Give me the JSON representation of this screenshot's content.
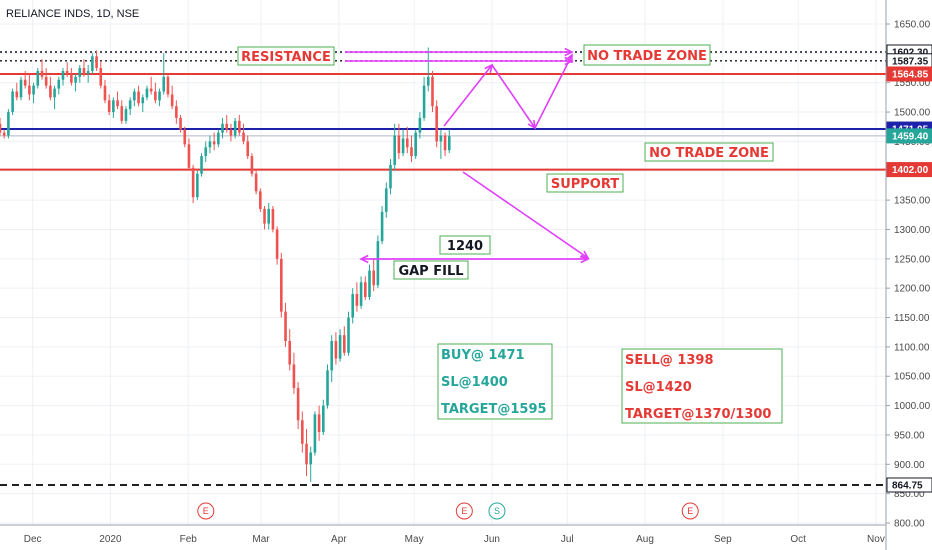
{
  "chart_data": {
    "type": "candlestick",
    "title": "RELIANCE INDS, 1D, NSE",
    "ylim": [
      790,
      1690
    ],
    "y_ticks": [
      800,
      850,
      900,
      950,
      1000,
      1050,
      1100,
      1150,
      1200,
      1250,
      1300,
      1350,
      1400,
      1450,
      1500,
      1550,
      1600,
      1650
    ],
    "y_tick_labels": [
      "800.00",
      "850.00",
      "900.00",
      "950.00",
      "1000.00",
      "1050.00",
      "1100.00",
      "1150.00",
      "1200.00",
      "1250.00",
      "1300.00",
      "1350.00",
      "1400.00",
      "1450.00",
      "1500.00",
      "1550.00",
      "1600.00",
      "1650.00"
    ],
    "x_domain_days": [
      0,
      353
    ],
    "x_ticks": [
      {
        "day": 13,
        "label": "Dec"
      },
      {
        "day": 44,
        "label": "2020"
      },
      {
        "day": 75,
        "label": "Feb"
      },
      {
        "day": 104,
        "label": "Mar"
      },
      {
        "day": 135,
        "label": "Apr"
      },
      {
        "day": 165,
        "label": "May"
      },
      {
        "day": 196,
        "label": "Jun"
      },
      {
        "day": 226,
        "label": "Jul"
      },
      {
        "day": 257,
        "label": "Aug"
      },
      {
        "day": 288,
        "label": "Sep"
      },
      {
        "day": 318,
        "label": "Oct"
      },
      {
        "day": 349,
        "label": "Nov"
      }
    ],
    "up_color": "#26a69a",
    "down_color": "#ef5350",
    "ohlc_points": [
      [
        1480,
        1490,
        1460,
        1465
      ],
      [
        1465,
        1470,
        1455,
        1460
      ],
      [
        1460,
        1505,
        1455,
        1500
      ],
      [
        1500,
        1540,
        1495,
        1535
      ],
      [
        1535,
        1550,
        1520,
        1525
      ],
      [
        1525,
        1560,
        1520,
        1555
      ],
      [
        1555,
        1570,
        1540,
        1545
      ],
      [
        1545,
        1565,
        1520,
        1530
      ],
      [
        1530,
        1550,
        1515,
        1545
      ],
      [
        1545,
        1575,
        1540,
        1570
      ],
      [
        1570,
        1590,
        1555,
        1560
      ],
      [
        1560,
        1575,
        1540,
        1545
      ],
      [
        1545,
        1560,
        1520,
        1525
      ],
      [
        1525,
        1545,
        1505,
        1540
      ],
      [
        1540,
        1560,
        1530,
        1555
      ],
      [
        1555,
        1575,
        1545,
        1570
      ],
      [
        1570,
        1585,
        1560,
        1565
      ],
      [
        1565,
        1575,
        1545,
        1550
      ],
      [
        1550,
        1565,
        1535,
        1560
      ],
      [
        1560,
        1580,
        1550,
        1575
      ],
      [
        1575,
        1590,
        1560,
        1565
      ],
      [
        1565,
        1580,
        1550,
        1570
      ],
      [
        1570,
        1600,
        1565,
        1595
      ],
      [
        1595,
        1605,
        1570,
        1575
      ],
      [
        1575,
        1585,
        1540,
        1545
      ],
      [
        1545,
        1555,
        1515,
        1520
      ],
      [
        1520,
        1530,
        1495,
        1500
      ],
      [
        1500,
        1525,
        1490,
        1520
      ],
      [
        1520,
        1535,
        1505,
        1510
      ],
      [
        1510,
        1520,
        1480,
        1485
      ],
      [
        1485,
        1510,
        1480,
        1505
      ],
      [
        1505,
        1525,
        1495,
        1520
      ],
      [
        1520,
        1540,
        1510,
        1535
      ],
      [
        1535,
        1545,
        1510,
        1515
      ],
      [
        1515,
        1530,
        1500,
        1525
      ],
      [
        1525,
        1545,
        1520,
        1540
      ],
      [
        1540,
        1560,
        1530,
        1535
      ],
      [
        1535,
        1550,
        1515,
        1520
      ],
      [
        1520,
        1540,
        1510,
        1535
      ],
      [
        1535,
        1600,
        1530,
        1560
      ],
      [
        1560,
        1565,
        1525,
        1530
      ],
      [
        1530,
        1545,
        1505,
        1510
      ],
      [
        1510,
        1520,
        1480,
        1490
      ],
      [
        1490,
        1495,
        1465,
        1470
      ],
      [
        1470,
        1475,
        1440,
        1445
      ],
      [
        1445,
        1455,
        1400,
        1405
      ],
      [
        1405,
        1410,
        1345,
        1355
      ],
      [
        1355,
        1400,
        1350,
        1395
      ],
      [
        1395,
        1430,
        1390,
        1425
      ],
      [
        1425,
        1450,
        1415,
        1440
      ],
      [
        1440,
        1460,
        1430,
        1450
      ],
      [
        1450,
        1465,
        1435,
        1445
      ],
      [
        1445,
        1470,
        1440,
        1465
      ],
      [
        1465,
        1490,
        1455,
        1480
      ],
      [
        1480,
        1495,
        1465,
        1470
      ],
      [
        1470,
        1480,
        1450,
        1460
      ],
      [
        1460,
        1490,
        1455,
        1485
      ],
      [
        1485,
        1495,
        1460,
        1465
      ],
      [
        1465,
        1480,
        1445,
        1450
      ],
      [
        1450,
        1460,
        1420,
        1425
      ],
      [
        1425,
        1430,
        1390,
        1395
      ],
      [
        1395,
        1400,
        1360,
        1365
      ],
      [
        1365,
        1370,
        1330,
        1335
      ],
      [
        1335,
        1340,
        1300,
        1310
      ],
      [
        1310,
        1345,
        1300,
        1335
      ],
      [
        1335,
        1340,
        1295,
        1300
      ],
      [
        1300,
        1305,
        1240,
        1250
      ],
      [
        1250,
        1260,
        1150,
        1160
      ],
      [
        1160,
        1175,
        1100,
        1110
      ],
      [
        1110,
        1130,
        1060,
        1070
      ],
      [
        1070,
        1090,
        1020,
        1030
      ],
      [
        1030,
        1040,
        960,
        975
      ],
      [
        975,
        990,
        920,
        935
      ],
      [
        935,
        960,
        880,
        900
      ],
      [
        900,
        930,
        870,
        920
      ],
      [
        920,
        990,
        915,
        985
      ],
      [
        985,
        1000,
        940,
        955
      ],
      [
        955,
        1010,
        950,
        1000
      ],
      [
        1000,
        1070,
        995,
        1060
      ],
      [
        1060,
        1120,
        1040,
        1110
      ],
      [
        1110,
        1125,
        1070,
        1080
      ],
      [
        1080,
        1130,
        1075,
        1120
      ],
      [
        1120,
        1135,
        1085,
        1090
      ],
      [
        1090,
        1160,
        1085,
        1150
      ],
      [
        1150,
        1200,
        1140,
        1190
      ],
      [
        1190,
        1210,
        1160,
        1170
      ],
      [
        1170,
        1220,
        1165,
        1210
      ],
      [
        1210,
        1220,
        1180,
        1185
      ],
      [
        1185,
        1240,
        1180,
        1230
      ],
      [
        1230,
        1250,
        1195,
        1205
      ],
      [
        1205,
        1290,
        1200,
        1280
      ],
      [
        1280,
        1340,
        1275,
        1330
      ],
      [
        1330,
        1380,
        1320,
        1370
      ],
      [
        1370,
        1420,
        1360,
        1410
      ],
      [
        1410,
        1480,
        1400,
        1460
      ],
      [
        1460,
        1480,
        1420,
        1430
      ],
      [
        1430,
        1470,
        1425,
        1455
      ],
      [
        1455,
        1475,
        1430,
        1440
      ],
      [
        1440,
        1460,
        1415,
        1425
      ],
      [
        1425,
        1470,
        1420,
        1465
      ],
      [
        1465,
        1500,
        1455,
        1490
      ],
      [
        1490,
        1560,
        1485,
        1545
      ],
      [
        1545,
        1610,
        1535,
        1560
      ],
      [
        1560,
        1570,
        1500,
        1510
      ],
      [
        1510,
        1520,
        1440,
        1450
      ],
      [
        1450,
        1470,
        1420,
        1460
      ],
      [
        1460,
        1465,
        1425,
        1435
      ],
      [
        1435,
        1470,
        1430,
        1459
      ]
    ],
    "price_lines": [
      {
        "value": 1602.3,
        "style": "dotted",
        "color": "#131722",
        "label": "1602.30"
      },
      {
        "value": 1587.35,
        "style": "dotted",
        "color": "#131722",
        "label": "1587.35"
      },
      {
        "value": 1564.85,
        "style": "solid",
        "color": "#e53935",
        "label": "1564.85"
      },
      {
        "value": 1471.05,
        "style": "solid",
        "color": "#1e22aa",
        "label": "1471.05"
      },
      {
        "value": 1459.4,
        "style": "thin",
        "color": "#b0b8c8",
        "label": "1459.40"
      },
      {
        "value": 1402.0,
        "style": "solid",
        "color": "#e53935",
        "label": "1402.00"
      },
      {
        "value": 864.75,
        "style": "dashed",
        "color": "#000000",
        "label": "864.75"
      }
    ],
    "annotations": [
      {
        "text": "RESISTANCE",
        "color": "#e53935"
      },
      {
        "text": "NO TRADE ZONE",
        "color": "#e53935"
      },
      {
        "text": "NO TRADE ZONE",
        "color": "#e53935"
      },
      {
        "text": "SUPPORT",
        "color": "#e53935"
      },
      {
        "text": "1240",
        "color": "#131722"
      },
      {
        "text": "GAP FILL",
        "color": "#131722"
      }
    ],
    "trade_boxes": [
      {
        "color": "#26a69a",
        "lines": [
          "BUY@ 1471",
          "SL@1400",
          "TARGET@1595"
        ]
      },
      {
        "color": "#e53935",
        "lines": [
          "SELL@ 1398",
          "SL@1420",
          "TARGET@1370/1300"
        ]
      }
    ],
    "earnings_markers": [
      {
        "day": 82,
        "label": "E",
        "color": "#e53935"
      },
      {
        "day": 185,
        "label": "E",
        "color": "#e53935"
      },
      {
        "day": 198,
        "label": "S",
        "color": "#26a69a"
      },
      {
        "day": 275,
        "label": "E",
        "color": "#e53935"
      }
    ]
  }
}
